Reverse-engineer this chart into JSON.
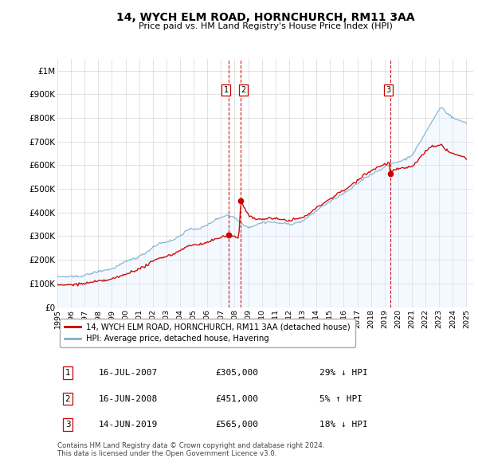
{
  "title": "14, WYCH ELM ROAD, HORNCHURCH, RM11 3AA",
  "subtitle": "Price paid vs. HM Land Registry's House Price Index (HPI)",
  "legend_label_red": "14, WYCH ELM ROAD, HORNCHURCH, RM11 3AA (detached house)",
  "legend_label_blue": "HPI: Average price, detached house, Havering",
  "footer": "Contains HM Land Registry data © Crown copyright and database right 2024.\nThis data is licensed under the Open Government Licence v3.0.",
  "transactions": [
    {
      "id": 1,
      "date_str": "16-JUL-2007",
      "date_x": 2007.54,
      "price": 305000,
      "pct": "29%",
      "direction": "↓",
      "vs": "HPI"
    },
    {
      "id": 2,
      "date_str": "16-JUN-2008",
      "date_x": 2008.46,
      "price": 451000,
      "pct": "5%",
      "direction": "↑",
      "vs": "HPI"
    },
    {
      "id": 3,
      "date_str": "14-JUN-2019",
      "date_x": 2019.45,
      "price": 565000,
      "pct": "18%",
      "direction": "↓",
      "vs": "HPI"
    }
  ],
  "vline_color": "#cc0000",
  "dot_color": "#cc0000",
  "red_color": "#cc0000",
  "blue_color": "#7bafd4",
  "blue_fill_color": "#ddeeff",
  "ylim": [
    0,
    1050000
  ],
  "xlim_start": 1995.0,
  "xlim_end": 2025.5,
  "yticks": [
    0,
    100000,
    200000,
    300000,
    400000,
    500000,
    600000,
    700000,
    800000,
    900000,
    1000000
  ],
  "ytick_labels": [
    "£0",
    "£100K",
    "£200K",
    "£300K",
    "£400K",
    "£500K",
    "£600K",
    "£700K",
    "£800K",
    "£900K",
    "£1M"
  ],
  "xticks": [
    1995,
    1996,
    1997,
    1998,
    1999,
    2000,
    2001,
    2002,
    2003,
    2004,
    2005,
    2006,
    2007,
    2008,
    2009,
    2010,
    2011,
    2012,
    2013,
    2014,
    2015,
    2016,
    2017,
    2018,
    2019,
    2020,
    2021,
    2022,
    2023,
    2024,
    2025
  ]
}
